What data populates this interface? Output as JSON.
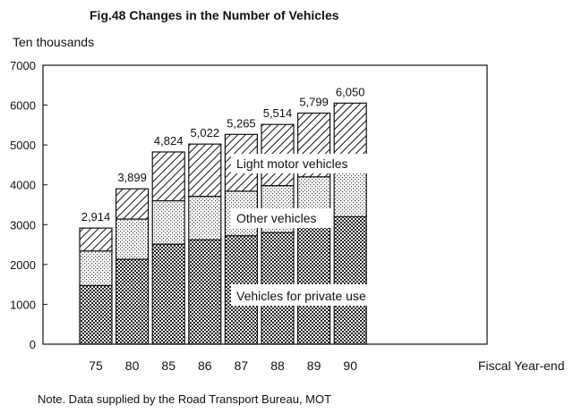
{
  "chart_data": {
    "type": "bar",
    "stacked": true,
    "title": "Fig.48   Changes in the Number of Vehicles",
    "ylabel": "Ten thousands",
    "xlabel": "Fiscal Year-end",
    "ylim": [
      0,
      7000
    ],
    "yticks": [
      0,
      1000,
      2000,
      3000,
      4000,
      5000,
      6000,
      7000
    ],
    "categories": [
      "75",
      "80",
      "85",
      "86",
      "87",
      "88",
      "89",
      "90"
    ],
    "totals_labels": [
      "2,914",
      "3,899",
      "4,824",
      "5,022",
      "5,265",
      "5,514",
      "5,799",
      "6,050"
    ],
    "series": [
      {
        "name": "Vehicles for private use",
        "values": [
          1470,
          2130,
          2510,
          2620,
          2720,
          2800,
          3020,
          3200
        ],
        "pattern": "dense-dots"
      },
      {
        "name": "Other vehicles",
        "values": [
          870,
          1010,
          1090,
          1090,
          1120,
          1180,
          1180,
          1170
        ],
        "pattern": "light-dots"
      },
      {
        "name": "Light motor vehicles",
        "values": [
          574,
          759,
          1224,
          1312,
          1425,
          1534,
          1599,
          1680
        ],
        "pattern": "hatch"
      }
    ],
    "legend": "inline-labels",
    "grid": false
  },
  "note": "Note.  Data supplied by the Road Transport Bureau, MOT"
}
